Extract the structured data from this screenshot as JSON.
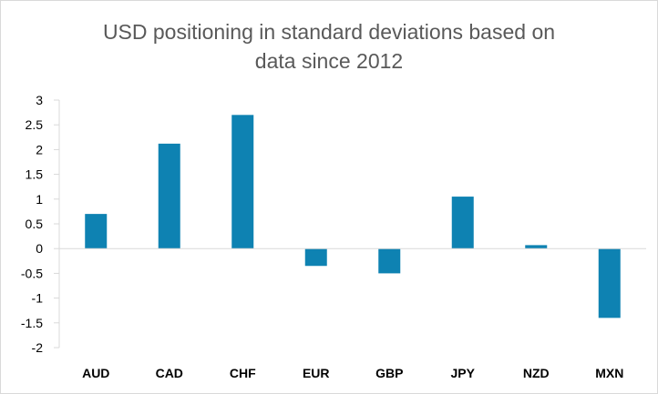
{
  "chart_data": {
    "type": "bar",
    "title_line1": "USD positioning in standard deviations based on",
    "title_line2": "data since 2012",
    "categories": [
      "AUD",
      "CAD",
      "CHF",
      "EUR",
      "GBP",
      "JPY",
      "NZD",
      "MXN"
    ],
    "values": [
      0.7,
      2.12,
      2.7,
      -0.35,
      -0.5,
      1.05,
      0.07,
      -1.4
    ],
    "ylim": [
      -2,
      3
    ],
    "yticks": [
      "3",
      "2.5",
      "2",
      "1.5",
      "1",
      "0.5",
      "0",
      "-0.5",
      "-1",
      "-1.5",
      "-2"
    ],
    "xlabel": "",
    "ylabel": "",
    "grid": false,
    "bar_color": "#0e82b2",
    "axis_color": "#d9d9d9"
  }
}
